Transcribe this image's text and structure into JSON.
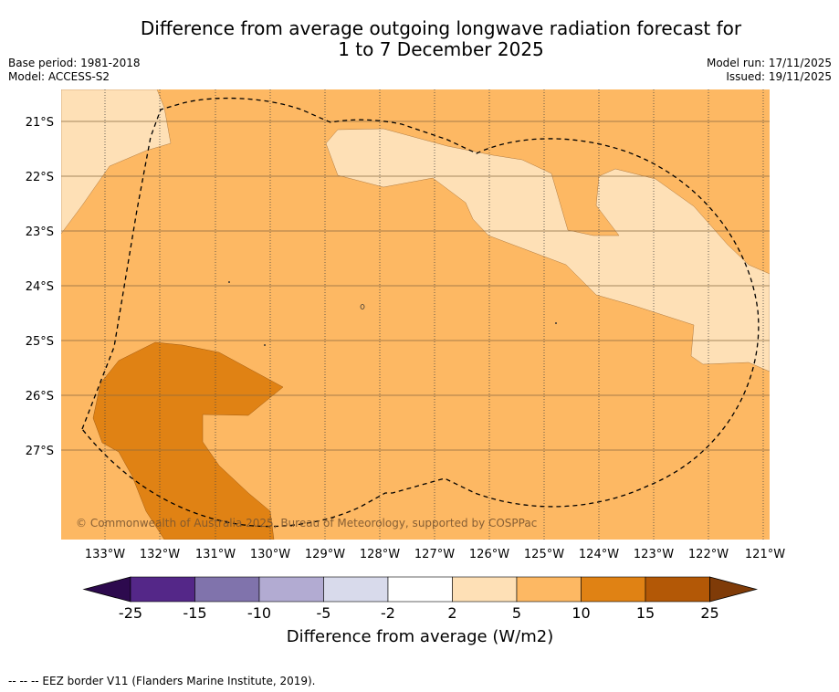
{
  "title_line1": "Difference from average outgoing longwave radiation forecast for",
  "title_line2": "1 to 7 December 2025",
  "base_period": "Base period: 1981-2018",
  "model": "Model: ACCESS-S2",
  "model_run": "Model run: 17/11/2025",
  "issued": "Issued: 19/11/2025",
  "lat_ticks": [
    "21°S",
    "22°S",
    "23°S",
    "24°S",
    "25°S",
    "26°S",
    "27°S"
  ],
  "lon_ticks": [
    "133°W",
    "132°W",
    "131°W",
    "130°W",
    "129°W",
    "128°W",
    "127°W",
    "126°W",
    "125°W",
    "124°W",
    "123°W",
    "122°W",
    "121°W"
  ],
  "copyright": "© Commonwealth of Australia 2025, Bureau of Meteorology, supported by COSPPac",
  "colorbar": {
    "labels": [
      "-25",
      "-15",
      "-10",
      "-5",
      "-2",
      "2",
      "5",
      "10",
      "15",
      "25"
    ],
    "colors": [
      "#2d0a4e",
      "#542788",
      "#8073ac",
      "#b2abd2",
      "#d8daeb",
      "#ffffff",
      "#fee0b6",
      "#fdb863",
      "#e08214",
      "#b35806",
      "#7f3b08"
    ],
    "title": "Difference from average (W/m2)"
  },
  "footer": "--  --  -- EEZ border V11 (Flanders Marine Institute, 2019).",
  "map_colors": {
    "band_2_5": "#fee0b6",
    "band_5_10": "#fdb863",
    "band_10_15": "#e08214"
  }
}
